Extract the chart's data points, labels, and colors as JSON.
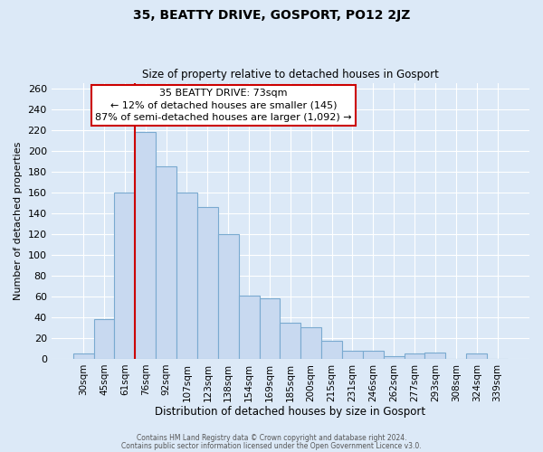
{
  "title": "35, BEATTY DRIVE, GOSPORT, PO12 2JZ",
  "subtitle": "Size of property relative to detached houses in Gosport",
  "xlabel": "Distribution of detached houses by size in Gosport",
  "ylabel": "Number of detached properties",
  "bar_labels": [
    "30sqm",
    "45sqm",
    "61sqm",
    "76sqm",
    "92sqm",
    "107sqm",
    "123sqm",
    "138sqm",
    "154sqm",
    "169sqm",
    "185sqm",
    "200sqm",
    "215sqm",
    "231sqm",
    "246sqm",
    "262sqm",
    "277sqm",
    "293sqm",
    "308sqm",
    "324sqm",
    "339sqm"
  ],
  "bar_values": [
    5,
    38,
    160,
    218,
    185,
    160,
    146,
    120,
    61,
    58,
    35,
    30,
    17,
    8,
    8,
    3,
    5,
    6,
    0,
    5,
    0
  ],
  "bar_color": "#c8d9f0",
  "bar_edge_color": "#7aaad0",
  "vline_index": 3,
  "vline_color": "#cc0000",
  "annotation_title": "35 BEATTY DRIVE: 73sqm",
  "annotation_line1": "← 12% of detached houses are smaller (145)",
  "annotation_line2": "87% of semi-detached houses are larger (1,092) →",
  "annotation_box_color": "#ffffff",
  "annotation_box_edge": "#cc0000",
  "ylim": [
    0,
    265
  ],
  "yticks": [
    0,
    20,
    40,
    60,
    80,
    100,
    120,
    140,
    160,
    180,
    200,
    220,
    240,
    260
  ],
  "footer1": "Contains HM Land Registry data © Crown copyright and database right 2024.",
  "footer2": "Contains public sector information licensed under the Open Government Licence v3.0.",
  "bg_color": "#dce9f7",
  "plot_bg_color": "#dce9f7"
}
